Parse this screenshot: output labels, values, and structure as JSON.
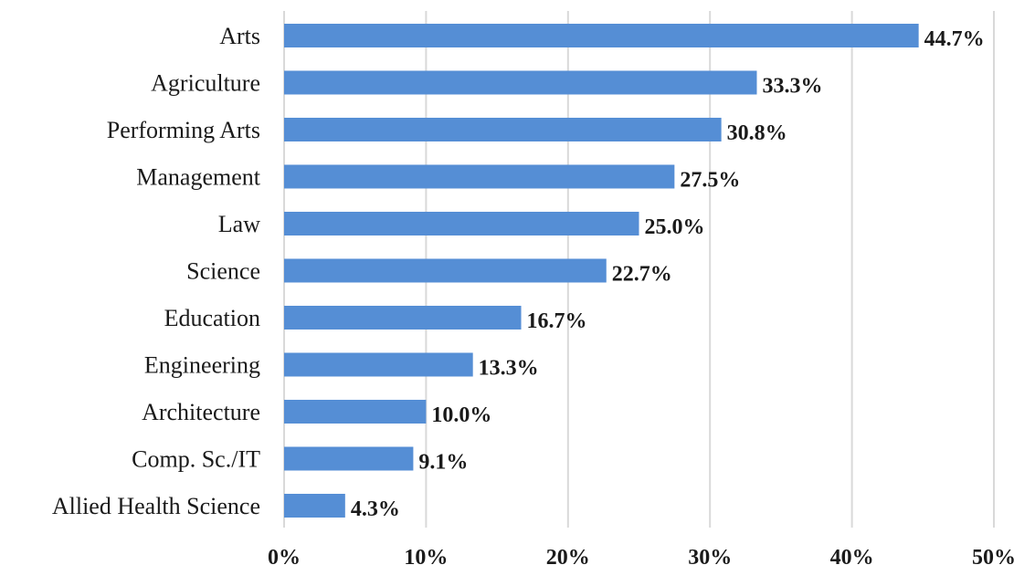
{
  "chart_data": {
    "type": "bar",
    "orientation": "horizontal",
    "categories": [
      "Arts",
      "Agriculture",
      "Performing Arts",
      "Management",
      "Law",
      "Science",
      "Education",
      "Engineering",
      "Architecture",
      "Comp. Sc./IT",
      "Allied Health Science"
    ],
    "values": [
      44.7,
      33.3,
      30.8,
      27.5,
      25.0,
      22.7,
      16.7,
      13.3,
      10.0,
      9.1,
      4.3
    ],
    "value_labels": [
      "44.7%",
      "33.3%",
      "30.8%",
      "27.5%",
      "25.0%",
      "22.7%",
      "16.7%",
      "13.3%",
      "10.0%",
      "9.1%",
      "4.3%"
    ],
    "xlim": [
      0,
      50
    ],
    "x_ticks": [
      0,
      10,
      20,
      30,
      40,
      50
    ],
    "x_tick_labels": [
      "0%",
      "10%",
      "20%",
      "30%",
      "40%",
      "50%"
    ],
    "title": "",
    "xlabel": "",
    "ylabel": "",
    "grid": "vertical",
    "legend": "none",
    "colors": {
      "bar": "#558ed5",
      "grid": "#d9d9d9",
      "text": "#1a1a1a"
    }
  }
}
